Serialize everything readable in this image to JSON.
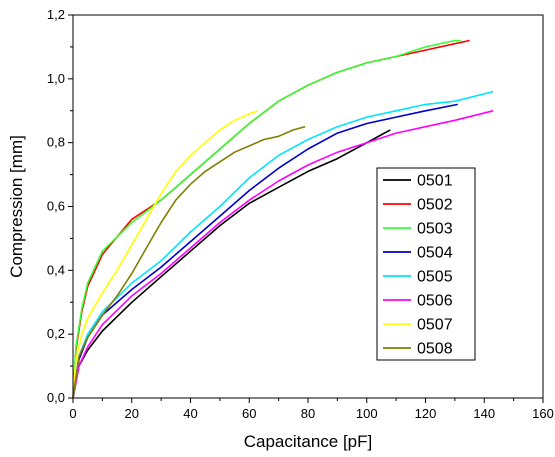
{
  "chart_data": {
    "type": "line",
    "title": "",
    "xlabel": "Capacitance [pF]",
    "ylabel": "Compression [mm]",
    "xlim": [
      0,
      160
    ],
    "ylim": [
      0,
      1.2
    ],
    "x_ticks": [
      0,
      20,
      40,
      60,
      80,
      100,
      120,
      140,
      160
    ],
    "y_ticks": [
      0,
      0.2,
      0.4,
      0.6,
      0.8,
      1.0,
      1.2
    ],
    "x_tick_labels": [
      "0",
      "20",
      "40",
      "60",
      "80",
      "100",
      "120",
      "140",
      "160"
    ],
    "y_tick_labels": [
      "0,0",
      "0,2",
      "0,4",
      "0,6",
      "0,8",
      "1,0",
      "1,2"
    ],
    "grid": false,
    "legend_position": "lower-right",
    "series": [
      {
        "name": "0501",
        "color": "#000000",
        "x": [
          0,
          2,
          5,
          10,
          20,
          30,
          40,
          50,
          60,
          70,
          80,
          90,
          100,
          108
        ],
        "y": [
          0,
          0.1,
          0.15,
          0.21,
          0.3,
          0.38,
          0.46,
          0.54,
          0.61,
          0.66,
          0.71,
          0.75,
          0.8,
          0.84
        ]
      },
      {
        "name": "0502",
        "color": "#ff0000",
        "x": [
          0,
          1,
          3,
          5,
          10,
          20,
          30,
          40,
          50,
          60,
          70,
          80,
          90,
          100,
          110,
          120,
          130,
          135
        ],
        "y": [
          0,
          0.15,
          0.27,
          0.35,
          0.45,
          0.56,
          0.62,
          0.7,
          0.78,
          0.86,
          0.93,
          0.98,
          1.02,
          1.05,
          1.07,
          1.09,
          1.11,
          1.12
        ]
      },
      {
        "name": "0503",
        "color": "#33ff33",
        "x": [
          0,
          1,
          3,
          5,
          10,
          20,
          30,
          40,
          50,
          60,
          70,
          80,
          90,
          100,
          110,
          120,
          130,
          132
        ],
        "y": [
          0,
          0.16,
          0.28,
          0.36,
          0.46,
          0.55,
          0.62,
          0.7,
          0.78,
          0.86,
          0.93,
          0.98,
          1.02,
          1.05,
          1.07,
          1.1,
          1.12,
          1.12
        ]
      },
      {
        "name": "0504",
        "color": "#0000cc",
        "x": [
          0,
          2,
          5,
          10,
          20,
          30,
          40,
          50,
          60,
          70,
          80,
          90,
          100,
          110,
          120,
          131
        ],
        "y": [
          0,
          0.12,
          0.19,
          0.26,
          0.34,
          0.41,
          0.49,
          0.57,
          0.65,
          0.72,
          0.78,
          0.83,
          0.86,
          0.88,
          0.9,
          0.92
        ]
      },
      {
        "name": "0505",
        "color": "#00e5ff",
        "x": [
          0,
          2,
          5,
          10,
          20,
          30,
          40,
          50,
          60,
          70,
          80,
          90,
          100,
          110,
          120,
          130,
          143
        ],
        "y": [
          0,
          0.13,
          0.2,
          0.27,
          0.36,
          0.43,
          0.52,
          0.6,
          0.69,
          0.76,
          0.81,
          0.85,
          0.88,
          0.9,
          0.92,
          0.93,
          0.96
        ]
      },
      {
        "name": "0506",
        "color": "#ff00ff",
        "x": [
          0,
          2,
          5,
          10,
          20,
          30,
          40,
          50,
          60,
          70,
          80,
          90,
          100,
          110,
          120,
          130,
          143
        ],
        "y": [
          0,
          0.1,
          0.16,
          0.23,
          0.32,
          0.39,
          0.47,
          0.55,
          0.62,
          0.68,
          0.73,
          0.77,
          0.8,
          0.83,
          0.85,
          0.87,
          0.9
        ]
      },
      {
        "name": "0507",
        "color": "#ffff00",
        "x": [
          0,
          1,
          3,
          5,
          10,
          15,
          20,
          25,
          30,
          35,
          40,
          45,
          50,
          55,
          60,
          63
        ],
        "y": [
          0,
          0.12,
          0.2,
          0.25,
          0.33,
          0.4,
          0.48,
          0.56,
          0.64,
          0.71,
          0.76,
          0.8,
          0.84,
          0.87,
          0.89,
          0.9
        ]
      },
      {
        "name": "0508",
        "color": "#808000",
        "x": [
          0,
          2,
          5,
          10,
          15,
          20,
          25,
          30,
          35,
          40,
          45,
          50,
          55,
          60,
          65,
          70,
          75,
          79
        ],
        "y": [
          0,
          0.13,
          0.19,
          0.26,
          0.32,
          0.39,
          0.47,
          0.55,
          0.62,
          0.67,
          0.71,
          0.74,
          0.77,
          0.79,
          0.81,
          0.82,
          0.84,
          0.85
        ]
      }
    ]
  }
}
